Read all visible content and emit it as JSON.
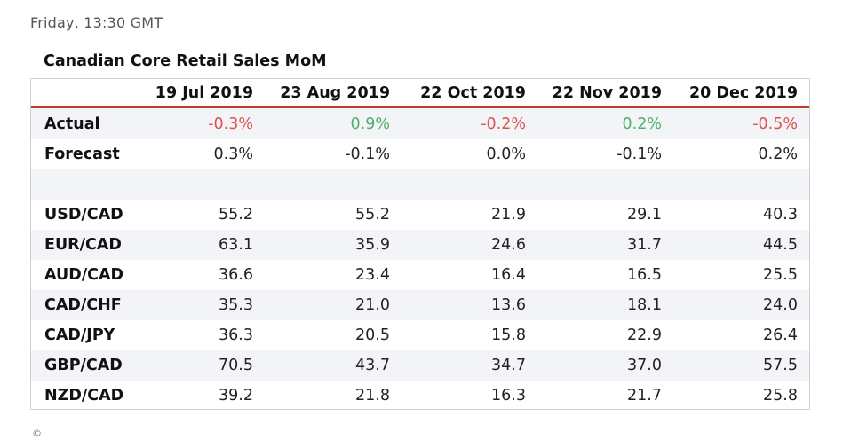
{
  "timestamp": "Friday, 13:30 GMT",
  "table": {
    "title": "Canadian Core Retail Sales MoM",
    "columns": [
      "19 Jul 2019",
      "23 Aug 2019",
      "22 Oct 2019",
      "22 Nov 2019",
      "20 Dec 2019"
    ],
    "actual": {
      "label": "Actual",
      "values": [
        "-0.3%",
        "0.9%",
        "-0.2%",
        "0.2%",
        "-0.5%"
      ]
    },
    "forecast": {
      "label": "Forecast",
      "values": [
        "0.3%",
        "-0.1%",
        "0.0%",
        "-0.1%",
        "0.2%"
      ]
    },
    "pairs": [
      {
        "label": "USD/CAD",
        "values": [
          "55.2",
          "55.2",
          "21.9",
          "29.1",
          "40.3"
        ]
      },
      {
        "label": "EUR/CAD",
        "values": [
          "63.1",
          "35.9",
          "24.6",
          "31.7",
          "44.5"
        ]
      },
      {
        "label": "AUD/CAD",
        "values": [
          "36.6",
          "23.4",
          "16.4",
          "16.5",
          "25.5"
        ]
      },
      {
        "label": "CAD/CHF",
        "values": [
          "35.3",
          "21.0",
          "13.6",
          "18.1",
          "24.0"
        ]
      },
      {
        "label": "CAD/JPY",
        "values": [
          "36.3",
          "20.5",
          "15.8",
          "22.9",
          "26.4"
        ]
      },
      {
        "label": "GBP/CAD",
        "values": [
          "70.5",
          "43.7",
          "34.7",
          "37.0",
          "57.5"
        ]
      },
      {
        "label": "NZD/CAD",
        "values": [
          "39.2",
          "21.8",
          "16.3",
          "21.7",
          "25.8"
        ]
      }
    ]
  },
  "colors": {
    "negative": "#d9534f",
    "positive": "#4caf6a",
    "header_rule": "#c0392b",
    "row_shade": "#f2f4f8"
  },
  "copyright": "©"
}
